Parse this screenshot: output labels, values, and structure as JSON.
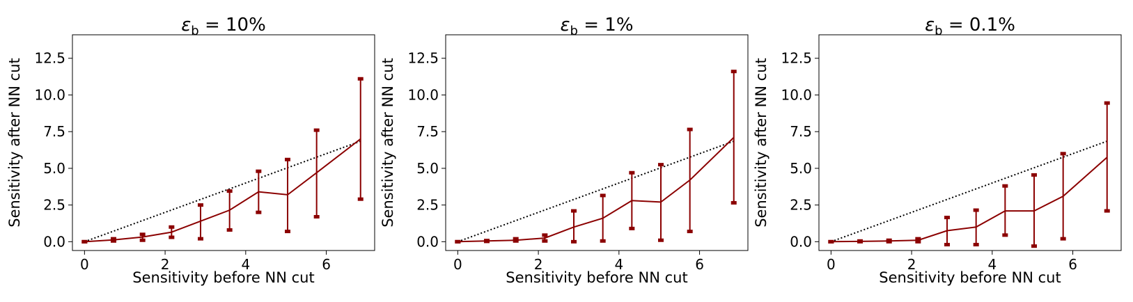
{
  "figure": {
    "color": "#8b0000",
    "reference_color": "#000000"
  },
  "chart_data": [
    {
      "type": "line",
      "title_prefix": "ε",
      "title_subscript": "b",
      "title_suffix": " = 10%",
      "xlabel": "Sensitivity before NN cut",
      "ylabel": "Sensitivity after NN cut",
      "xlim": [
        -0.3,
        7.2
      ],
      "ylim": [
        -0.6,
        14.1
      ],
      "xticks": [
        0,
        2,
        4,
        6
      ],
      "xtick_labels": [
        "0",
        "2",
        "4",
        "6"
      ],
      "yticks": [
        0,
        2.5,
        5,
        7.5,
        10,
        12.5
      ],
      "ytick_labels": [
        "0.0",
        "2.5",
        "5.0",
        "7.5",
        "10.0",
        "12.5"
      ],
      "reference": {
        "x": [
          0,
          6.85
        ],
        "y": [
          0,
          6.85
        ]
      },
      "series": [
        {
          "name": "sensitivity after NN cut",
          "x": [
            0,
            0.72,
            1.44,
            2.16,
            2.88,
            3.6,
            4.32,
            5.04,
            5.76,
            6.85
          ],
          "y": [
            0,
            0.12,
            0.32,
            0.65,
            1.4,
            2.15,
            3.4,
            3.2,
            4.7,
            7.0
          ],
          "err_low": [
            0,
            0.05,
            0.1,
            0.3,
            0.2,
            0.8,
            2.0,
            0.7,
            1.7,
            2.9
          ],
          "err_high": [
            0,
            0.2,
            0.5,
            1.0,
            2.5,
            3.45,
            4.8,
            5.6,
            7.6,
            11.1
          ]
        }
      ]
    },
    {
      "type": "line",
      "title_prefix": "ε",
      "title_subscript": "b",
      "title_suffix": " = 1%",
      "xlabel": "Sensitivity before NN cut",
      "ylabel": "Sensitivity after NN cut",
      "xlim": [
        -0.3,
        7.2
      ],
      "ylim": [
        -0.6,
        14.1
      ],
      "xticks": [
        0,
        2,
        4,
        6
      ],
      "xtick_labels": [
        "0",
        "2",
        "4",
        "6"
      ],
      "yticks": [
        0,
        2.5,
        5,
        7.5,
        10,
        12.5
      ],
      "ytick_labels": [
        "0.0",
        "2.5",
        "5.0",
        "7.5",
        "10.0",
        "12.5"
      ],
      "reference": {
        "x": [
          0,
          6.85
        ],
        "y": [
          0,
          6.85
        ]
      },
      "series": [
        {
          "name": "sensitivity after NN cut",
          "x": [
            0,
            0.72,
            1.44,
            2.16,
            2.88,
            3.6,
            4.32,
            5.04,
            5.76,
            6.85
          ],
          "y": [
            0,
            0.05,
            0.1,
            0.25,
            1.0,
            1.6,
            2.8,
            2.7,
            4.2,
            7.1
          ],
          "err_low": [
            0,
            0.02,
            0.05,
            0.05,
            0.0,
            0.05,
            0.9,
            0.1,
            0.7,
            2.65
          ],
          "err_high": [
            0,
            0.08,
            0.2,
            0.45,
            2.1,
            3.15,
            4.7,
            5.25,
            7.65,
            11.6
          ]
        }
      ]
    },
    {
      "type": "line",
      "title_prefix": "ε",
      "title_subscript": "b",
      "title_suffix": " = 0.1%",
      "xlabel": "Sensitivity before NN cut",
      "ylabel": "Sensitivity after NN cut",
      "xlim": [
        -0.3,
        7.2
      ],
      "ylim": [
        -0.6,
        14.1
      ],
      "xticks": [
        0,
        2,
        4,
        6
      ],
      "xtick_labels": [
        "0",
        "2",
        "4",
        "6"
      ],
      "yticks": [
        0,
        2.5,
        5,
        7.5,
        10,
        12.5
      ],
      "ytick_labels": [
        "0.0",
        "2.5",
        "5.0",
        "7.5",
        "10.0",
        "12.5"
      ],
      "reference": {
        "x": [
          0,
          6.85
        ],
        "y": [
          0,
          6.85
        ]
      },
      "series": [
        {
          "name": "sensitivity after NN cut",
          "x": [
            0,
            0.72,
            1.44,
            2.16,
            2.88,
            3.6,
            4.32,
            5.04,
            5.76,
            6.85
          ],
          "y": [
            0,
            0.02,
            0.05,
            0.1,
            0.75,
            1.0,
            2.1,
            2.1,
            3.1,
            5.75
          ],
          "err_low": [
            0,
            0.0,
            0.0,
            0.0,
            -0.2,
            -0.2,
            0.45,
            -0.3,
            0.2,
            2.1
          ],
          "err_high": [
            0,
            0.05,
            0.1,
            0.2,
            1.65,
            2.15,
            3.8,
            4.55,
            6.0,
            9.45
          ]
        }
      ]
    }
  ]
}
